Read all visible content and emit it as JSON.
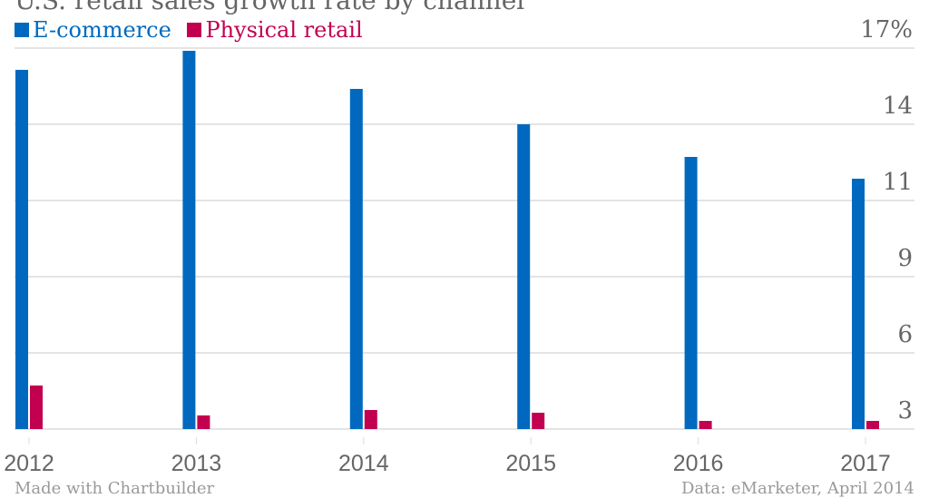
{
  "chart_data": {
    "type": "bar",
    "title": "U.S. retail sales growth rate by channel",
    "categories": [
      "2012",
      "2013",
      "2014",
      "2015",
      "2016",
      "2017"
    ],
    "series": [
      {
        "name": "E-commerce",
        "color": "#0069bf",
        "values": [
          16.2,
          16.9,
          15.5,
          14.2,
          13.0,
          12.2
        ]
      },
      {
        "name": "Physical retail",
        "color": "#c2004f",
        "values": [
          4.6,
          3.5,
          3.7,
          3.6,
          3.3,
          3.3
        ]
      }
    ],
    "y_ticks": [
      3,
      5.8,
      8.6,
      11.4,
      14.2,
      17
    ],
    "y_tick_labels": [
      "3",
      "6",
      "9",
      "11",
      "14",
      "17%"
    ],
    "ylim": [
      3,
      17
    ],
    "y_axis_side": "right",
    "grid": true,
    "legend": "top-left"
  },
  "footer": {
    "left": "Made with Chartbuilder",
    "right": "Data: eMarketer, April 2014"
  }
}
